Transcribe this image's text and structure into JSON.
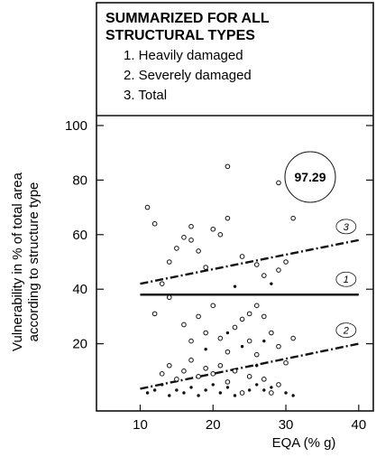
{
  "chart_data": {
    "type": "scatter",
    "title_lines": [
      "SUMMARIZED FOR ALL",
      "STRUCTURAL TYPES"
    ],
    "legend_items": [
      "1. Heavily damaged",
      "2. Severely damaged",
      "3. Total"
    ],
    "xlabel": "EQA  (% g)",
    "ylabel_lines": [
      "Vulnerability in  %  of total area",
      "according to structure type"
    ],
    "xlim": [
      4,
      42
    ],
    "ylim": [
      0,
      100
    ],
    "x_ticks": [
      "10",
      "20",
      "30",
      "40"
    ],
    "y_ticks": [
      "20",
      "40",
      "60",
      "80",
      "100"
    ],
    "annotation": "97.29",
    "series": [
      {
        "marker": "open-circle",
        "points": [
          [
            11,
            70
          ],
          [
            12,
            64
          ],
          [
            13,
            42
          ],
          [
            14,
            50
          ],
          [
            15,
            55
          ],
          [
            16,
            59
          ],
          [
            17,
            63
          ],
          [
            17,
            58
          ],
          [
            18,
            54
          ],
          [
            19,
            48
          ],
          [
            20,
            62
          ],
          [
            21,
            60
          ],
          [
            22,
            85
          ],
          [
            22,
            66
          ],
          [
            24,
            52
          ],
          [
            26,
            49
          ],
          [
            27,
            45
          ],
          [
            29,
            79
          ],
          [
            29,
            47
          ],
          [
            30,
            50
          ],
          [
            31,
            66
          ],
          [
            12,
            31
          ],
          [
            14,
            37
          ],
          [
            16,
            27
          ],
          [
            17,
            21
          ],
          [
            18,
            30
          ],
          [
            19,
            24
          ],
          [
            20,
            34
          ],
          [
            21,
            22
          ],
          [
            22,
            17
          ],
          [
            23,
            26
          ],
          [
            24,
            29
          ],
          [
            25,
            31
          ],
          [
            25,
            21
          ],
          [
            26,
            34
          ],
          [
            26,
            16
          ],
          [
            27,
            30
          ],
          [
            28,
            24
          ],
          [
            29,
            19
          ],
          [
            30,
            13
          ],
          [
            31,
            22
          ],
          [
            13,
            9
          ],
          [
            14,
            12
          ],
          [
            15,
            7
          ],
          [
            16,
            10
          ],
          [
            17,
            14
          ],
          [
            18,
            8
          ],
          [
            19,
            11
          ],
          [
            20,
            9
          ],
          [
            21,
            12
          ],
          [
            22,
            6
          ],
          [
            23,
            10
          ],
          [
            25,
            8
          ],
          [
            27,
            7
          ],
          [
            29,
            5
          ],
          [
            24,
            2
          ],
          [
            28,
            2
          ]
        ]
      },
      {
        "marker": "dot",
        "points": [
          [
            11,
            2
          ],
          [
            12,
            3
          ],
          [
            13,
            5
          ],
          [
            14,
            1
          ],
          [
            15,
            3
          ],
          [
            16,
            2
          ],
          [
            17,
            4
          ],
          [
            18,
            1
          ],
          [
            19,
            3
          ],
          [
            20,
            5
          ],
          [
            21,
            2
          ],
          [
            22,
            4
          ],
          [
            23,
            1
          ],
          [
            25,
            3
          ],
          [
            26,
            5
          ],
          [
            27,
            3
          ],
          [
            28,
            4
          ],
          [
            30,
            2
          ],
          [
            31,
            1
          ],
          [
            19,
            18
          ],
          [
            24,
            19
          ],
          [
            27,
            21
          ],
          [
            23,
            41
          ],
          [
            28,
            42
          ],
          [
            26,
            12
          ],
          [
            22,
            24
          ]
        ]
      }
    ],
    "lines": [
      {
        "label": "1",
        "style": "solid",
        "x": [
          10,
          40
        ],
        "y": [
          38,
          38
        ]
      },
      {
        "label": "2",
        "style": "dashed",
        "x": [
          10,
          40
        ],
        "y": [
          3.5,
          20
        ]
      },
      {
        "label": "3",
        "style": "dashed",
        "x": [
          10,
          40
        ],
        "y": [
          42,
          58
        ]
      }
    ]
  }
}
